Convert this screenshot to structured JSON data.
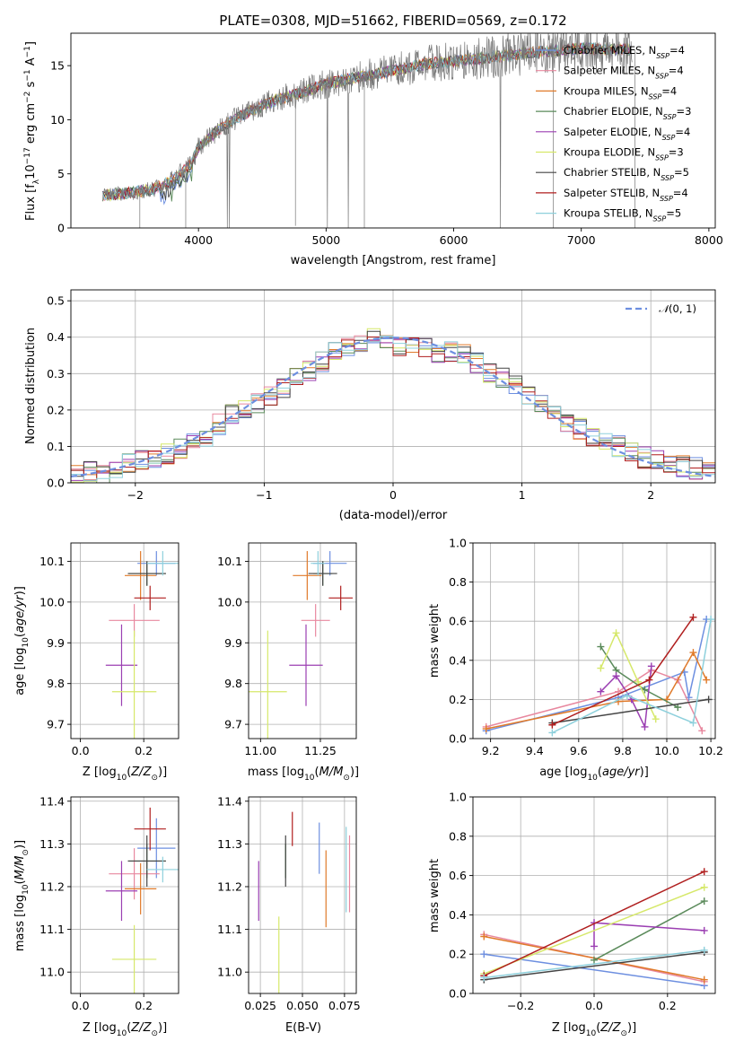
{
  "title": "PLATE=0308, MJD=51662, FIBERID=0569, z=0.172",
  "series": [
    {
      "name": "Chabrier MILES, N$_{SSP}$=4",
      "label_main": "Chabrier MILES, N",
      "sub": "SSP",
      "nssp": "=4",
      "color": "#6d8fe0",
      "Z": 0.24,
      "Z_err": 0.06,
      "age": 10.095,
      "age_err": 0.03,
      "mass": 11.29,
      "mass_err": 0.07,
      "mass_age_err": 0.12,
      "ebv": 0.06,
      "ebv_err": 0.06
    },
    {
      "name": "Salpeter MILES, N$_{SSP}$=4",
      "label_main": "Salpeter MILES, N",
      "sub": "SSP",
      "nssp": "=4",
      "color": "#e8889f",
      "Z": 0.17,
      "Z_err": 0.08,
      "age": 9.955,
      "age_err": 0.04,
      "mass": 11.23,
      "mass_err": 0.06,
      "ebv": 0.078,
      "ebv_err": 0.09
    },
    {
      "name": "Kroupa MILES, N$_{SSP}$=4",
      "label_main": "Kroupa MILES, N",
      "sub": "SSP",
      "nssp": "=4",
      "color": "#e07a2a",
      "Z": 0.19,
      "Z_err": 0.05,
      "age": 10.065,
      "age_err": 0.06,
      "mass": 11.195,
      "mass_err": 0.06,
      "ebv": 0.064,
      "ebv_err": 0.09
    },
    {
      "name": "Chabrier ELODIE, N$_{SSP}$=3",
      "label_main": "Chabrier ELODIE, N",
      "sub": "SSP",
      "nssp": "=3",
      "color": "#5a8a5a",
      "Z": 0.21,
      "Z_err": 0.06,
      "age": 10.07,
      "age_err": 0.03,
      "mass": 11.26,
      "mass_err": 0.04,
      "ebv": 0.04,
      "ebv_err": 0.04
    },
    {
      "name": "Salpeter ELODIE, N$_{SSP}$=4",
      "label_main": "Salpeter ELODIE, N",
      "sub": "SSP",
      "nssp": "=4",
      "color": "#9b3fb2",
      "Z": 0.13,
      "Z_err": 0.05,
      "age": 9.845,
      "age_err": 0.1,
      "mass": 11.19,
      "mass_err": 0.07,
      "ebv": 0.024,
      "ebv_err": 0.07
    },
    {
      "name": "Kroupa ELODIE, N$_{SSP}$=3",
      "label_main": "Kroupa ELODIE, N",
      "sub": "SSP",
      "nssp": "=3",
      "color": "#d6e86a",
      "Z": 0.17,
      "Z_err": 0.07,
      "age": 9.78,
      "age_err": 0.15,
      "mass": 11.03,
      "mass_err": 0.08,
      "ebv": 0.036,
      "ebv_err": 0.1
    },
    {
      "name": "Chabrier STELIB, N$_{SSP}$=5",
      "label_main": "Chabrier STELIB, N",
      "sub": "SSP",
      "nssp": "=5",
      "color": "#444444",
      "Z": 0.21,
      "Z_err": 0.06,
      "age": 10.07,
      "age_err": 0.03,
      "mass": 11.26,
      "mass_err": 0.06,
      "ebv": 0.04,
      "ebv_err": 0.06
    },
    {
      "name": "Salpeter STELIB, N$_{SSP}$=4",
      "label_main": "Salpeter STELIB, N",
      "sub": "SSP",
      "nssp": "=4",
      "color": "#b01f1f",
      "Z": 0.22,
      "Z_err": 0.05,
      "age": 10.01,
      "age_err": 0.03,
      "mass": 11.335,
      "mass_err": 0.05,
      "ebv": 0.044,
      "ebv_err": 0.04
    },
    {
      "name": "Kroupa STELIB, N$_{SSP}$=5",
      "label_main": "Kroupa STELIB, N",
      "sub": "SSP",
      "nssp": "=5",
      "color": "#8ed0dc",
      "Z": 0.26,
      "Z_err": 0.05,
      "age": 10.095,
      "age_err": 0.03,
      "mass": 11.24,
      "mass_err": 0.03,
      "ebv": 0.076,
      "ebv_err": 0.1
    }
  ],
  "chart_data": [
    {
      "type": "line",
      "title": "PLATE=0308, MJD=51662, FIBERID=0569, z=0.172",
      "xlabel": "wavelength [Angstrom, rest frame]",
      "ylabel": "Flux [f$_\\lambda$10$^{-17}$ erg cm$^{-2}$ s$^{-1}$ A$^{-1}$]",
      "xlim": [
        3000,
        8050
      ],
      "ylim": [
        0,
        18
      ],
      "xticks": [
        4000,
        5000,
        6000,
        7000,
        8000
      ],
      "yticks": [
        0,
        5,
        10,
        15
      ],
      "data_envelope": {
        "x": [
          3250,
          3500,
          3650,
          3800,
          3950,
          4000,
          4200,
          4400,
          4600,
          4800,
          5000,
          5200,
          5500,
          5800,
          6000,
          6300,
          6600,
          6800,
          7000,
          7200,
          7400
        ],
        "y": [
          3.0,
          3.3,
          3.6,
          4.5,
          6.0,
          7.5,
          9.5,
          10.8,
          11.8,
          12.5,
          13.3,
          13.8,
          14.5,
          15.2,
          15.4,
          15.8,
          16.2,
          16.4,
          16.6,
          16.5,
          16.5
        ]
      },
      "legend": "upper right"
    },
    {
      "type": "bar",
      "xlabel": "(data-model)/error",
      "ylabel": "Normed distribution",
      "xlim": [
        -2.5,
        2.5
      ],
      "ylim": [
        0,
        0.53
      ],
      "xticks": [
        -2,
        -1,
        0,
        1,
        2
      ],
      "yticks": [
        0.0,
        0.1,
        0.2,
        0.3,
        0.4,
        0.5
      ],
      "bin_width": 0.1,
      "bin_edges_start": -2.5,
      "histogram_mean": [
        0.03,
        0.03,
        0.025,
        0.04,
        0.05,
        0.06,
        0.065,
        0.08,
        0.09,
        0.11,
        0.12,
        0.16,
        0.19,
        0.2,
        0.22,
        0.24,
        0.26,
        0.29,
        0.31,
        0.33,
        0.36,
        0.37,
        0.38,
        0.41,
        0.39,
        0.37,
        0.38,
        0.37,
        0.36,
        0.36,
        0.35,
        0.33,
        0.3,
        0.29,
        0.27,
        0.24,
        0.22,
        0.19,
        0.16,
        0.15,
        0.13,
        0.11,
        0.1,
        0.08,
        0.07,
        0.06,
        0.05,
        0.045,
        0.04,
        0.035
      ],
      "legend_label": "$\\mathcal{N}(0,1)$",
      "legend": "upper right"
    },
    {
      "type": "scatter",
      "panel": "age_vs_Z",
      "xlabel": "Z [log$_{10}$(Z/Z$_\\odot$)]",
      "ylabel": "age  [log$_{10}$(age/yr)]",
      "xlim": [
        -0.03,
        0.31
      ],
      "ylim": [
        9.665,
        10.145
      ],
      "xticks": [
        0.0,
        0.2
      ],
      "yticks": [
        9.7,
        9.8,
        9.9,
        10.0,
        10.1
      ]
    },
    {
      "type": "scatter",
      "panel": "age_vs_mass",
      "xlabel": "mass [log$_{10}$(M/M$_\\odot$)]",
      "xlim": [
        10.95,
        11.4
      ],
      "ylim": [
        9.665,
        10.145
      ],
      "xticks": [
        11.0,
        11.25
      ],
      "yticks": [
        9.7,
        9.8,
        9.9,
        10.0,
        10.1
      ]
    },
    {
      "type": "line",
      "panel": "weight_vs_age",
      "xlabel": "age  [log$_{10}$(age/yr)]",
      "ylabel": "mass weight",
      "xlim": [
        9.12,
        10.22
      ],
      "ylim": [
        0,
        1
      ],
      "xticks": [
        9.2,
        9.4,
        9.6,
        9.8,
        10.0,
        10.2
      ],
      "yticks": [
        0.0,
        0.2,
        0.4,
        0.6,
        0.8,
        1.0
      ],
      "series_points": [
        {
          "x": [
            9.18,
            9.78,
            10.08,
            10.1,
            10.18
          ],
          "y": [
            0.04,
            0.21,
            0.34,
            0.21,
            0.61
          ]
        },
        {
          "x": [
            9.18,
            9.78,
            9.93,
            10.05,
            10.16
          ],
          "y": [
            0.06,
            0.24,
            0.35,
            0.3,
            0.04
          ]
        },
        {
          "x": [
            9.18,
            9.78,
            10.0,
            10.12,
            10.18
          ],
          "y": [
            0.05,
            0.19,
            0.2,
            0.44,
            0.3
          ]
        },
        {
          "x": [
            9.7,
            9.77,
            9.9,
            10.05
          ],
          "y": [
            0.47,
            0.35,
            0.25,
            0.16
          ]
        },
        {
          "x": [
            9.7,
            9.77,
            9.84,
            9.9,
            9.93
          ],
          "y": [
            0.24,
            0.32,
            0.2,
            0.06,
            0.37
          ]
        },
        {
          "x": [
            9.7,
            9.77,
            9.87,
            9.95
          ],
          "y": [
            0.36,
            0.54,
            0.29,
            0.1
          ]
        },
        {
          "x": [
            9.48,
            10.19
          ],
          "y": [
            0.08,
            0.2
          ]
        },
        {
          "x": [
            9.48,
            9.92,
            10.12
          ],
          "y": [
            0.07,
            0.3,
            0.62
          ]
        },
        {
          "x": [
            9.48,
            9.82,
            10.12,
            10.2
          ],
          "y": [
            0.03,
            0.22,
            0.08,
            0.61
          ]
        }
      ]
    },
    {
      "type": "scatter",
      "panel": "mass_vs_Z",
      "xlabel": "Z [log$_{10}$(Z/Z$_\\odot$)]",
      "ylabel": "mass [log$_{10}$(M/M$_\\odot$)]",
      "xlim": [
        -0.03,
        0.31
      ],
      "ylim": [
        10.95,
        11.41
      ],
      "xticks": [
        0.0,
        0.2
      ],
      "yticks": [
        11.0,
        11.1,
        11.2,
        11.3,
        11.4
      ]
    },
    {
      "type": "scatter",
      "panel": "mass_vs_ebv",
      "xlabel": "E(B-V)",
      "xlim": [
        0.018,
        0.082
      ],
      "ylim": [
        10.95,
        11.41
      ],
      "xticks": [
        0.025,
        0.05,
        0.075
      ],
      "yticks": [
        11.0,
        11.1,
        11.2,
        11.3,
        11.4
      ]
    },
    {
      "type": "line",
      "panel": "weight_vs_Z",
      "xlabel": "Z [log$_{10}$(Z/Z$_\\odot$)]",
      "ylabel": "mass weight",
      "xlim": [
        -0.33,
        0.33
      ],
      "ylim": [
        0,
        1
      ],
      "xticks": [
        -0.2,
        0.0,
        0.2
      ],
      "yticks": [
        0.0,
        0.2,
        0.4,
        0.6,
        0.8,
        1.0
      ],
      "series_points": [
        {
          "x": [
            -0.3,
            0.3
          ],
          "y": [
            0.2,
            0.04
          ]
        },
        {
          "x": [
            -0.3,
            0.3
          ],
          "y": [
            0.3,
            0.06
          ]
        },
        {
          "x": [
            -0.3,
            0.3
          ],
          "y": [
            0.29,
            0.07
          ]
        },
        {
          "x": [
            0.0,
            0.3
          ],
          "y": [
            0.17,
            0.47
          ]
        },
        {
          "x": [
            0.0,
            0.0,
            0.3
          ],
          "y": [
            0.24,
            0.36,
            0.32
          ]
        },
        {
          "x": [
            -0.3,
            0.3
          ],
          "y": [
            0.1,
            0.54
          ]
        },
        {
          "x": [
            -0.3,
            0.3
          ],
          "y": [
            0.07,
            0.21
          ]
        },
        {
          "x": [
            -0.3,
            0.3
          ],
          "y": [
            0.09,
            0.62
          ]
        },
        {
          "x": [
            -0.3,
            0.3
          ],
          "y": [
            0.08,
            0.22
          ]
        }
      ]
    }
  ]
}
